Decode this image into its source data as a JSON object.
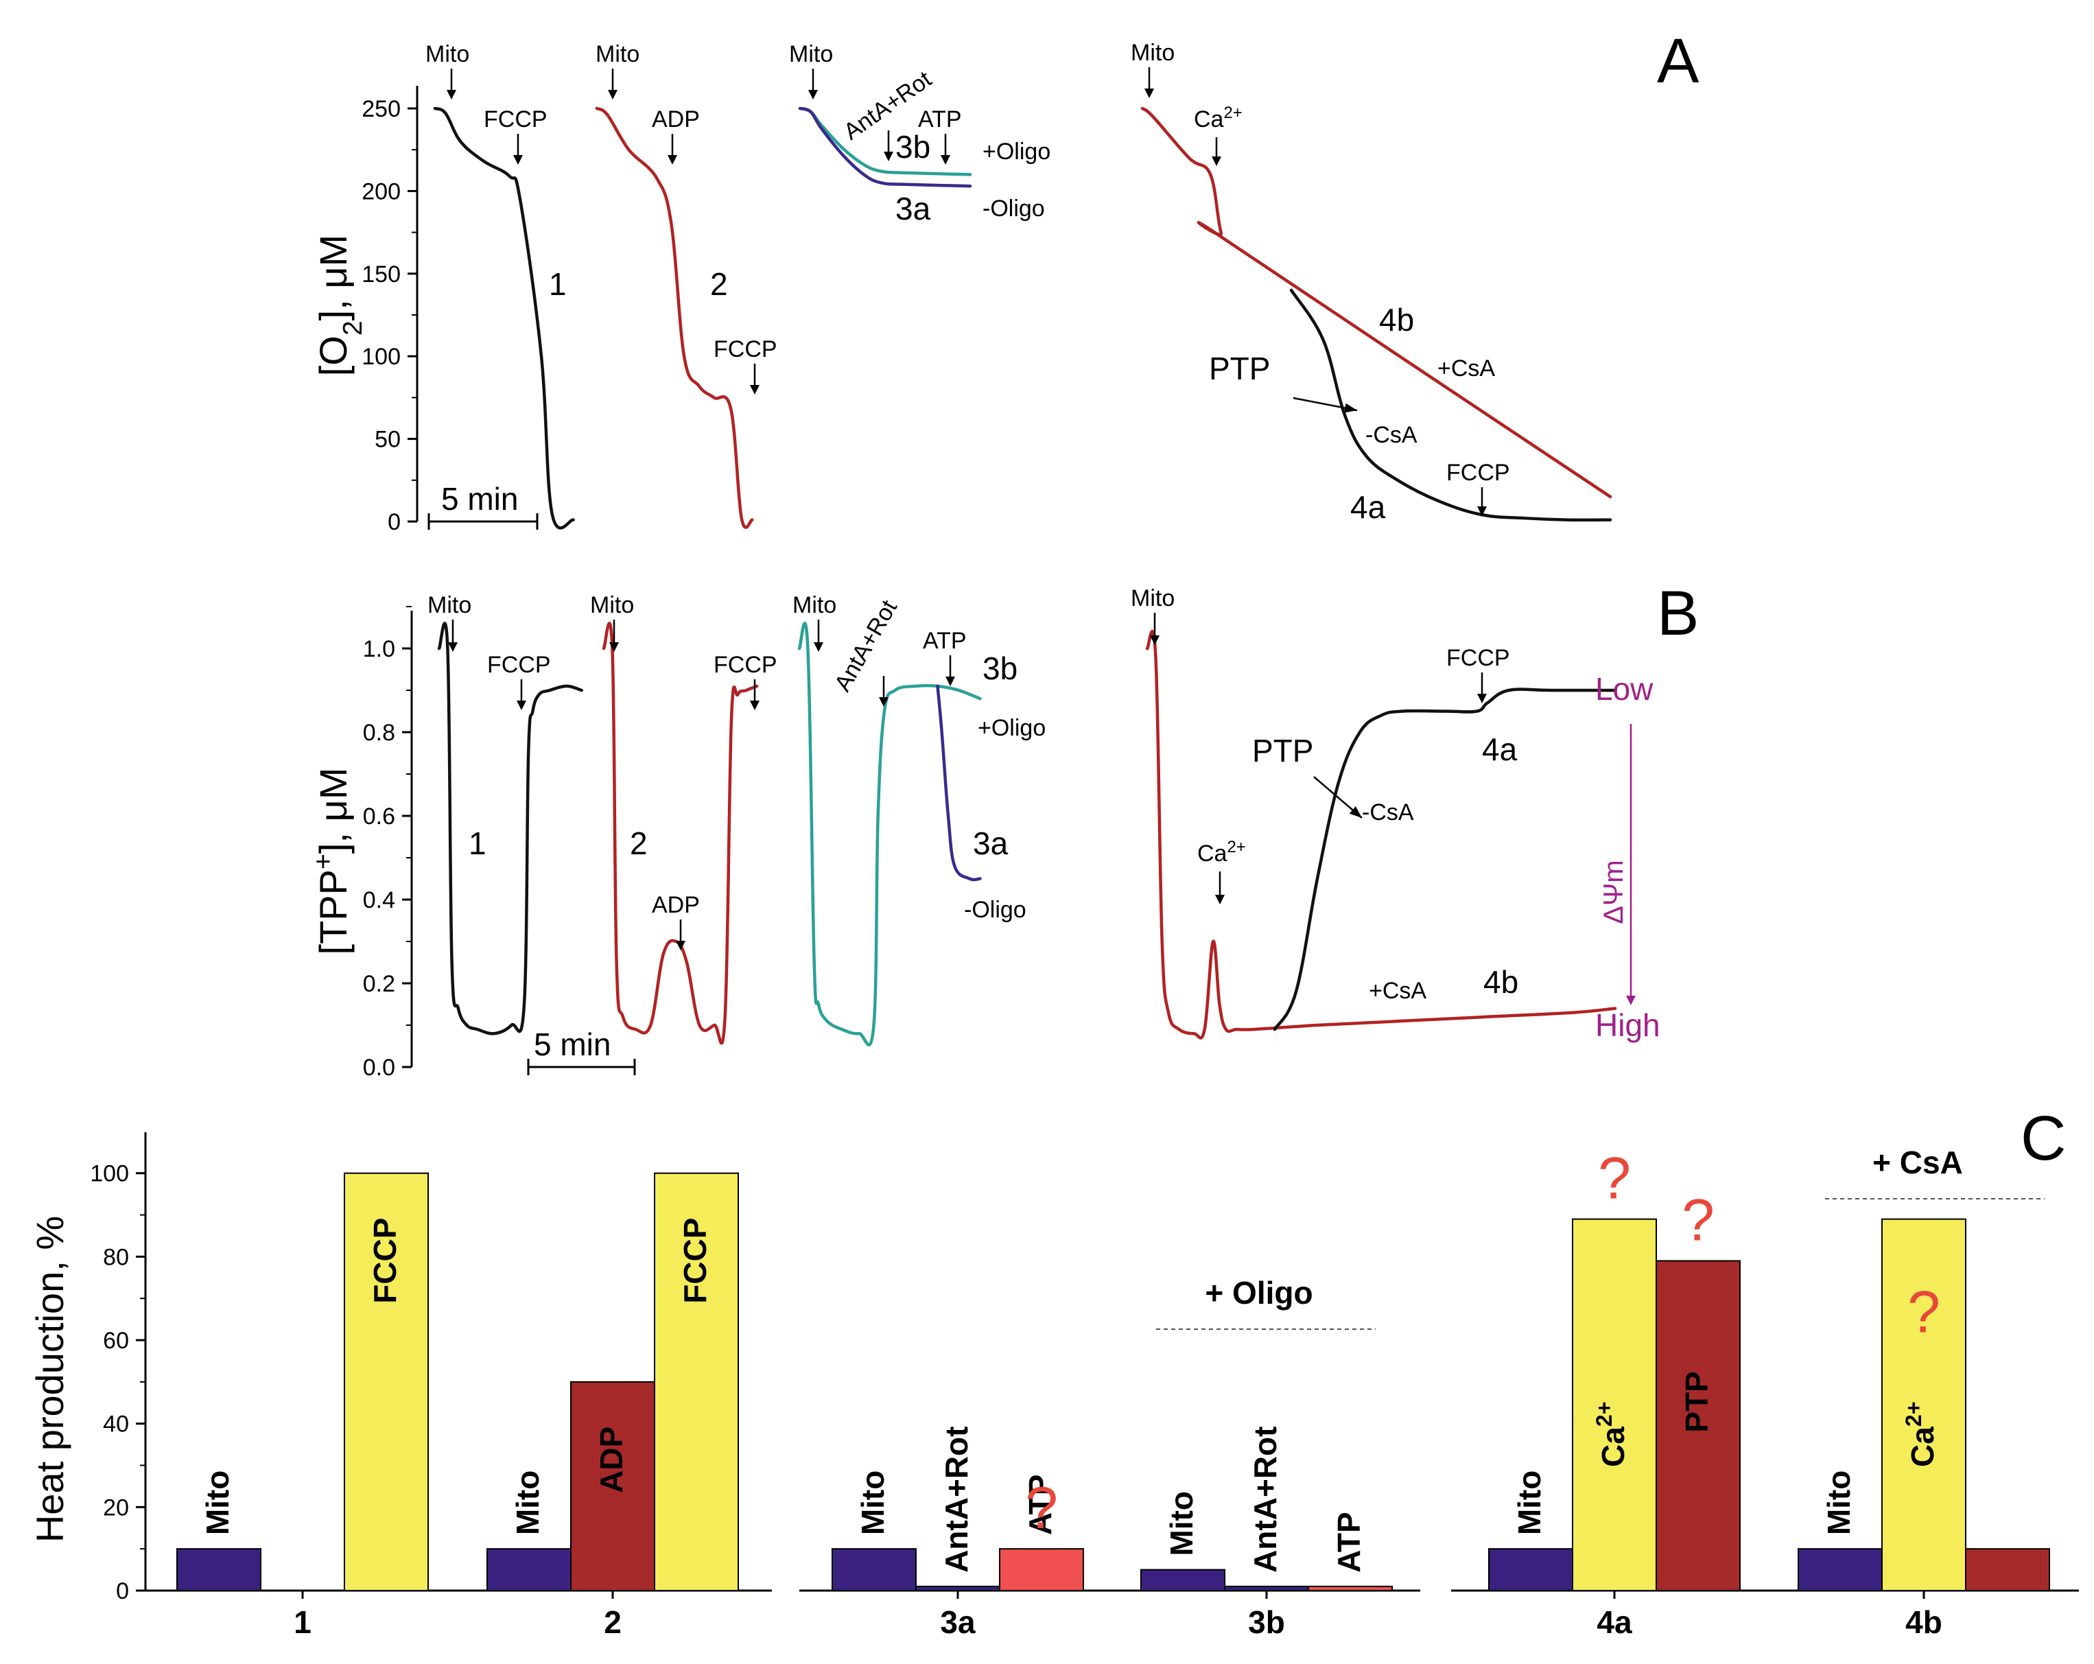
{
  "panel_letters": [
    "A",
    "B",
    "C"
  ],
  "colors": {
    "black": "#111111",
    "red": "#b22222",
    "teal": "#2aa198",
    "blue_trace": "#3b2a8c",
    "bar_navy": "#3b2180",
    "bar_yellow": "#f5ec5a",
    "bar_darkred": "#a62a2a",
    "bar_lightred": "#f05050",
    "magenta": "#a0208a",
    "question": "#e8483a"
  },
  "chart_data": [
    {
      "id": "A",
      "type": "line",
      "ylabel": "[O2], μM",
      "ylim": [
        0,
        250
      ],
      "yticks": [
        "0",
        "50",
        "100",
        "150",
        "200",
        "250"
      ],
      "scale_bar": "5 min",
      "traces": [
        {
          "name": "1",
          "color": "black",
          "x_min": [
            0,
            0.5,
            1.2,
            2.3,
            3.5,
            4.0,
            5.0,
            5.5,
            6.5
          ],
          "y": [
            250,
            247,
            230,
            218,
            209,
            195,
            100,
            5,
            1
          ]
        },
        {
          "name": "2",
          "color": "red",
          "x_min": [
            0,
            0.5,
            1.5,
            2.8,
            3.5,
            4.1,
            4.8,
            5.5,
            6.3,
            6.8,
            7.3
          ],
          "y": [
            250,
            246,
            225,
            208,
            180,
            100,
            82,
            75,
            68,
            2,
            1
          ]
        },
        {
          "name": "3b",
          "color": "teal",
          "x_min": [
            0,
            0.5,
            1.0,
            2.0,
            3.0,
            3.8,
            5.0,
            8.0
          ],
          "y": [
            250,
            248,
            240,
            226,
            216,
            212,
            211,
            210
          ]
        },
        {
          "name": "3a",
          "color": "blue_trace",
          "x_min": [
            0,
            0.5,
            1.0,
            2.0,
            3.0,
            3.8,
            5.0,
            8.0
          ],
          "y": [
            250,
            248,
            238,
            222,
            210,
            205,
            204,
            203
          ]
        },
        {
          "name": "4b",
          "color": "red",
          "x_min": [
            0,
            0.5,
            2.2,
            3.2,
            3.7,
            4.2,
            22
          ],
          "y": [
            250,
            245,
            220,
            210,
            175,
            168,
            15
          ]
        },
        {
          "name": "4a",
          "color": "black",
          "x_min": [
            7.0,
            8.5,
            9.5,
            10.5,
            12,
            14,
            16,
            18,
            20,
            22
          ],
          "y": [
            140,
            110,
            65,
            40,
            25,
            12,
            4,
            2,
            1,
            1
          ]
        }
      ],
      "annotations": [
        "Mito",
        "FCCP",
        "1",
        "Mito",
        "ADP",
        "2",
        "FCCP",
        "Mito",
        "AntA+Rot",
        "ATP",
        "3b",
        "3a",
        "+Oligo",
        "-Oligo",
        "Mito",
        "Ca2+",
        "4b",
        "+CsA",
        "PTP",
        "-CsA",
        "FCCP",
        "4a"
      ]
    },
    {
      "id": "B",
      "type": "line",
      "ylabel": "[TPP+], μM",
      "ylim": [
        0,
        1.1
      ],
      "yticks": [
        "0.0",
        "0.2",
        "0.4",
        "0.6",
        "0.8",
        "1.0"
      ],
      "scale_bar": "5 min",
      "side_labels": {
        "top": "Low",
        "bottom": "High",
        "arrow": "ΔΨm"
      },
      "traces": [
        {
          "name": "1",
          "color": "black",
          "x_min": [
            0,
            0.4,
            0.6,
            0.9,
            1.3,
            1.8,
            2.6,
            3.4,
            4.0,
            4.2,
            4.4,
            4.7,
            5.2,
            6.0,
            6.7
          ],
          "y": [
            1.0,
            1.0,
            0.25,
            0.14,
            0.1,
            0.09,
            0.08,
            0.1,
            0.15,
            0.75,
            0.85,
            0.89,
            0.9,
            0.91,
            0.9
          ]
        },
        {
          "name": "2",
          "color": "red",
          "x_min": [
            0,
            0.4,
            0.6,
            0.9,
            1.5,
            2.2,
            2.8,
            3.4,
            3.9,
            4.5,
            5.2,
            5.7,
            6.0,
            6.3,
            6.7,
            7.2
          ],
          "y": [
            1.0,
            1.0,
            0.25,
            0.12,
            0.09,
            0.1,
            0.27,
            0.3,
            0.25,
            0.1,
            0.1,
            0.12,
            0.83,
            0.89,
            0.9,
            0.91
          ]
        },
        {
          "name": "3b",
          "color": "teal",
          "x_min": [
            0,
            0.4,
            0.7,
            0.9,
            1.3,
            2.0,
            2.8,
            3.5,
            3.7,
            4.0,
            4.5,
            5.5,
            6.5,
            7.5,
            8.5
          ],
          "y": [
            1.0,
            1.0,
            0.25,
            0.15,
            0.11,
            0.09,
            0.08,
            0.1,
            0.6,
            0.85,
            0.9,
            0.91,
            0.91,
            0.9,
            0.88
          ]
        },
        {
          "name": "3a",
          "color": "blue_trace",
          "x_min": [
            6.5,
            6.7,
            7.0,
            7.3,
            8.0,
            8.5
          ],
          "y": [
            0.91,
            0.8,
            0.6,
            0.48,
            0.45,
            0.45
          ]
        },
        {
          "name": "4b",
          "color": "red",
          "x_min": [
            0,
            0.4,
            0.7,
            1.0,
            1.5,
            2.2,
            2.7,
            3.1,
            3.4,
            3.7,
            4.2,
            5.0,
            8,
            12,
            16,
            20,
            22
          ],
          "y": [
            1.0,
            0.98,
            0.3,
            0.13,
            0.09,
            0.08,
            0.09,
            0.3,
            0.15,
            0.09,
            0.09,
            0.09,
            0.1,
            0.11,
            0.12,
            0.13,
            0.14
          ]
        },
        {
          "name": "4a",
          "color": "black",
          "x_min": [
            6.0,
            7.0,
            8.0,
            9.0,
            10.0,
            11.0,
            12.0,
            14.0,
            15.5,
            16.0,
            17.0,
            19.0,
            22
          ],
          "y": [
            0.09,
            0.18,
            0.45,
            0.68,
            0.8,
            0.84,
            0.85,
            0.85,
            0.85,
            0.87,
            0.9,
            0.9,
            0.9
          ]
        }
      ],
      "annotations": [
        "Mito",
        "FCCP",
        "1",
        "Mito",
        "ADP",
        "FCCP",
        "2",
        "Mito",
        "AntA+Rot",
        "ATP",
        "3b",
        "+Oligo",
        "3a",
        "-Oligo",
        "Mito",
        "Ca2+",
        "PTP",
        "-CsA",
        "FCCP",
        "4a",
        "+CsA",
        "4b"
      ]
    },
    {
      "id": "C",
      "type": "bar",
      "ylabel": "Heat production, %",
      "ylim": [
        0,
        105
      ],
      "yticks": [
        "0",
        "20",
        "40",
        "60",
        "80",
        "100"
      ],
      "categories": [
        "1",
        "2",
        "3a",
        "3b",
        "4a",
        "4b"
      ],
      "groups": [
        {
          "category": "1",
          "bars": [
            {
              "label": "Mito",
              "value": 10,
              "color": "bar_navy"
            },
            {
              "label": "",
              "value": 0,
              "color": "bar_darkred"
            },
            {
              "label": "FCCP",
              "value": 100,
              "color": "bar_yellow"
            }
          ]
        },
        {
          "category": "2",
          "bars": [
            {
              "label": "Mito",
              "value": 10,
              "color": "bar_navy"
            },
            {
              "label": "ADP",
              "value": 50,
              "color": "bar_darkred"
            },
            {
              "label": "FCCP",
              "value": 100,
              "color": "bar_yellow"
            }
          ]
        },
        {
          "category": "3a",
          "bars": [
            {
              "label": "Mito",
              "value": 10,
              "color": "bar_navy"
            },
            {
              "label": "AntA+Rot",
              "value": 1,
              "color": "bar_navy"
            },
            {
              "label": "ATP",
              "value": 10,
              "color": "bar_lightred",
              "question": true
            }
          ]
        },
        {
          "category": "3b",
          "bars": [
            {
              "label": "Mito",
              "value": 5,
              "color": "bar_navy"
            },
            {
              "label": "AntA+Rot",
              "value": 1,
              "color": "bar_navy"
            },
            {
              "label": "ATP",
              "value": 1,
              "color": "bar_lightred"
            }
          ]
        },
        {
          "category": "4a",
          "bars": [
            {
              "label": "Mito",
              "value": 10,
              "color": "bar_navy"
            },
            {
              "label": "Ca2+",
              "value": 89,
              "color": "bar_yellow",
              "question": true
            },
            {
              "label": "PTP",
              "value": 79,
              "color": "bar_darkred",
              "question": true
            }
          ]
        },
        {
          "category": "4b",
          "bars": [
            {
              "label": "Mito",
              "value": 10,
              "color": "bar_navy"
            },
            {
              "label": "Ca2+",
              "value": 89,
              "color": "bar_yellow",
              "question": true
            },
            {
              "label": "",
              "value": 10,
              "color": "bar_darkred"
            }
          ]
        }
      ],
      "group_notes": [
        {
          "text": "+ Oligo",
          "over": "3b"
        },
        {
          "text": "+ CsA",
          "over": "4b"
        }
      ],
      "question_mark": "?"
    }
  ]
}
